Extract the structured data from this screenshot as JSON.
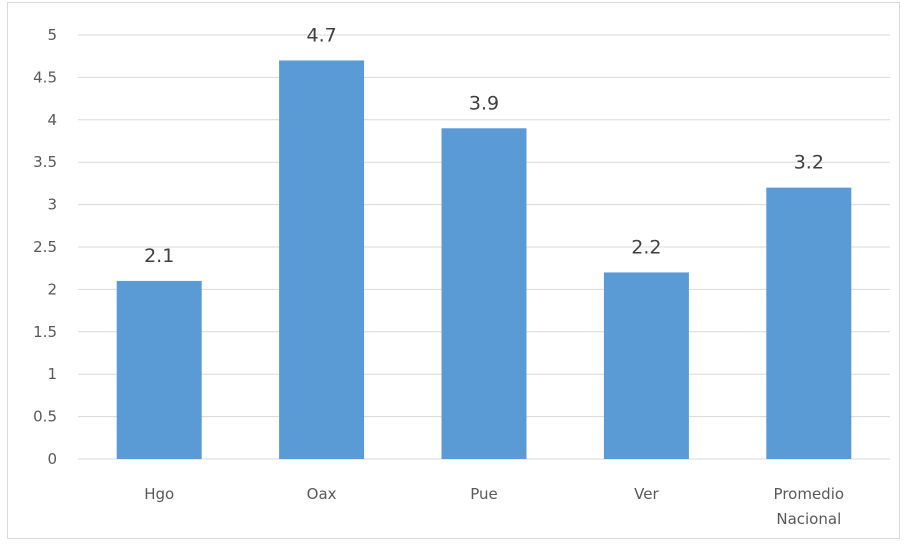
{
  "chart_data": {
    "type": "bar",
    "categories": [
      [
        "Hgo"
      ],
      [
        "Oax"
      ],
      [
        "Pue"
      ],
      [
        "Ver"
      ],
      [
        "Promedio",
        "Nacional"
      ]
    ],
    "series": [
      {
        "values": [
          2.1,
          4.7,
          3.9,
          2.2,
          3.2
        ]
      }
    ],
    "data_labels": [
      "2.1",
      "4.7",
      "3.9",
      "2.2",
      "3.2"
    ],
    "y_ticks": [
      "0",
      "0.5",
      "1",
      "1.5",
      "2",
      "2.5",
      "3",
      "3.5",
      "4",
      "4.5",
      "5"
    ],
    "ylim": [
      0,
      5
    ],
    "grid": true,
    "legend": "none",
    "colors": {
      "bar": "#5b9bd5",
      "grid": "#d9d9d9",
      "axis": "#d9d9d9"
    }
  }
}
